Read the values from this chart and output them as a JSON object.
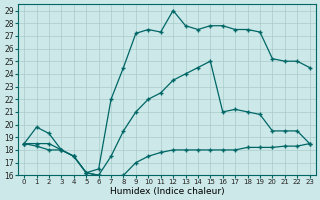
{
  "xlabel": "Humidex (Indice chaleur)",
  "xlim": [
    -0.5,
    23.5
  ],
  "ylim": [
    16,
    29.5
  ],
  "yticks": [
    16,
    17,
    18,
    19,
    20,
    21,
    22,
    23,
    24,
    25,
    26,
    27,
    28,
    29
  ],
  "xticks": [
    0,
    1,
    2,
    3,
    4,
    5,
    6,
    7,
    8,
    9,
    10,
    11,
    12,
    13,
    14,
    15,
    16,
    17,
    18,
    19,
    20,
    21,
    22,
    23
  ],
  "bg_color": "#cce8e8",
  "grid_color": "#aacccc",
  "line_color": "#006666",
  "hours": [
    0,
    1,
    2,
    3,
    4,
    5,
    6,
    7,
    8,
    9,
    10,
    11,
    12,
    13,
    14,
    15,
    16,
    17,
    18,
    19,
    20,
    21,
    22,
    23
  ],
  "line_max": [
    18.5,
    19.8,
    19.3,
    18.0,
    17.5,
    16.2,
    16.5,
    22.0,
    24.5,
    27.2,
    27.5,
    27.3,
    29.0,
    27.8,
    27.5,
    27.8,
    27.8,
    27.5,
    27.5,
    27.3,
    25.2,
    25.0,
    25.0,
    24.5
  ],
  "line_min": [
    18.5,
    18.3,
    18.0,
    18.0,
    17.5,
    16.2,
    16.0,
    15.9,
    16.0,
    17.0,
    17.5,
    17.8,
    18.0,
    18.0,
    18.0,
    18.0,
    18.0,
    18.0,
    18.2,
    18.2,
    18.2,
    18.3,
    18.3,
    18.5
  ],
  "line_mean": [
    18.5,
    18.5,
    18.5,
    18.0,
    17.5,
    16.2,
    16.0,
    17.5,
    19.5,
    21.0,
    22.0,
    22.5,
    23.5,
    24.0,
    24.5,
    25.0,
    21.0,
    21.2,
    21.0,
    20.8,
    19.5,
    19.5,
    19.5,
    18.5
  ]
}
